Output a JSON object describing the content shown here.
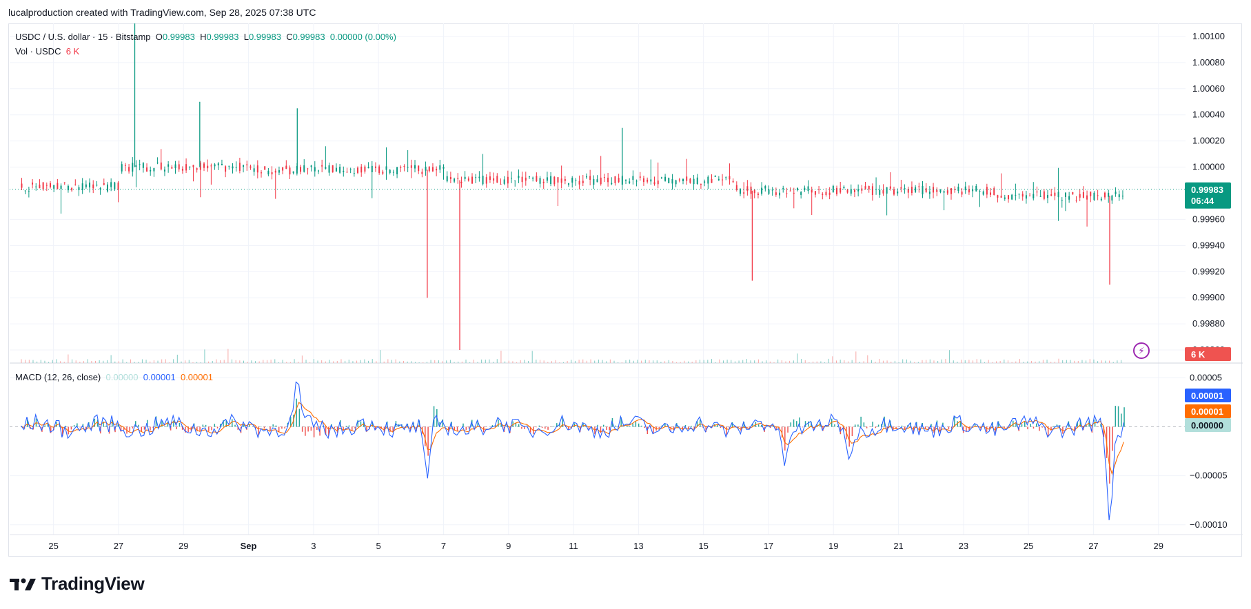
{
  "attribution": "lucalproduction created with TradingView.com, Sep 28, 2025 07:38 UTC",
  "legend": {
    "symbol": "USDC / U.S. dollar · 15 · Bitstamp",
    "o_label": "O",
    "o_value": "0.99983",
    "h_label": "H",
    "h_value": "0.99983",
    "l_label": "L",
    "l_value": "0.99983",
    "c_label": "C",
    "c_value": "0.99983",
    "change": "0.00000 (0.00%)",
    "vol_label": "Vol · USDC",
    "vol_value": "6 K"
  },
  "macd_legend": {
    "label": "MACD (12, 26, close)",
    "hist": "0.00000",
    "macd": "0.00001",
    "signal": "0.00001"
  },
  "badges": {
    "price": "0.99983",
    "countdown": "06:44",
    "volume": "6 K",
    "macd": "0.00001",
    "signal": "0.00001",
    "hist": "0.00000"
  },
  "colors": {
    "up": "#089981",
    "down": "#f23645",
    "macd": "#2962ff",
    "signal": "#ff6d00",
    "hist_up": "#26a69a",
    "hist_down": "#ef5350"
  },
  "logo": "TradingView",
  "chart_data": [
    {
      "type": "candlestick",
      "title": "USDC / U.S. dollar · 15 · Bitstamp",
      "ylim": [
        0.9985,
        1.0011
      ],
      "y_ticks": [
        "1.00100",
        "1.00080",
        "1.00060",
        "1.00040",
        "1.00020",
        "1.00000",
        "0.99960",
        "0.99940",
        "0.99920",
        "0.99900",
        "0.99880",
        "0.99860"
      ],
      "x_ticks": [
        "25",
        "27",
        "29",
        "Sep",
        "3",
        "5",
        "7",
        "9",
        "11",
        "13",
        "15",
        "17",
        "19",
        "21",
        "23",
        "25",
        "27",
        "29"
      ],
      "last_price": 0.99983,
      "baseline_segments": [
        {
          "from": "Aug 24",
          "to": "Aug 26",
          "level": 0.99985
        },
        {
          "from": "Aug 27",
          "to": "Aug 30",
          "level": 1.0
        },
        {
          "from": "Aug 31",
          "to": "Sep 5",
          "level": 0.99998
        },
        {
          "from": "Sep 6",
          "to": "Sep 14",
          "level": 0.9999
        },
        {
          "from": "Sep 15",
          "to": "Sep 22",
          "level": 0.99982
        },
        {
          "from": "Sep 23",
          "to": "Sep 28",
          "level": 0.99978
        }
      ],
      "notable_wicks": [
        {
          "date": "Aug 27",
          "high": 1.0011
        },
        {
          "date": "Aug 29",
          "high": 1.0005
        },
        {
          "date": "Sep 1",
          "high": 1.00045
        },
        {
          "date": "Sep 5",
          "low": 0.999
        },
        {
          "date": "Sep 6",
          "low": 0.9986
        },
        {
          "date": "Sep 11",
          "high": 1.0003
        },
        {
          "date": "Sep 15",
          "low": 0.99913
        },
        {
          "date": "Sep 26",
          "low": 0.9991
        }
      ]
    },
    {
      "type": "macd",
      "title": "MACD (12, 26, close)",
      "ylim": [
        -0.00011,
        6.5e-05
      ],
      "y_ticks": [
        "0.00005",
        "-0.00005",
        "-0.00010"
      ],
      "current": {
        "macd": 1e-05,
        "signal": 1e-05,
        "histogram": 0.0
      },
      "notable_points": [
        {
          "date": "Sep 1",
          "macd": 5e-05
        },
        {
          "date": "Sep 5",
          "macd": -5.3e-05
        },
        {
          "date": "Sep 16",
          "macd": -4e-05
        },
        {
          "date": "Sep 18",
          "macd": -3.5e-05
        },
        {
          "date": "Sep 26",
          "macd": -9.8e-05
        }
      ]
    }
  ]
}
